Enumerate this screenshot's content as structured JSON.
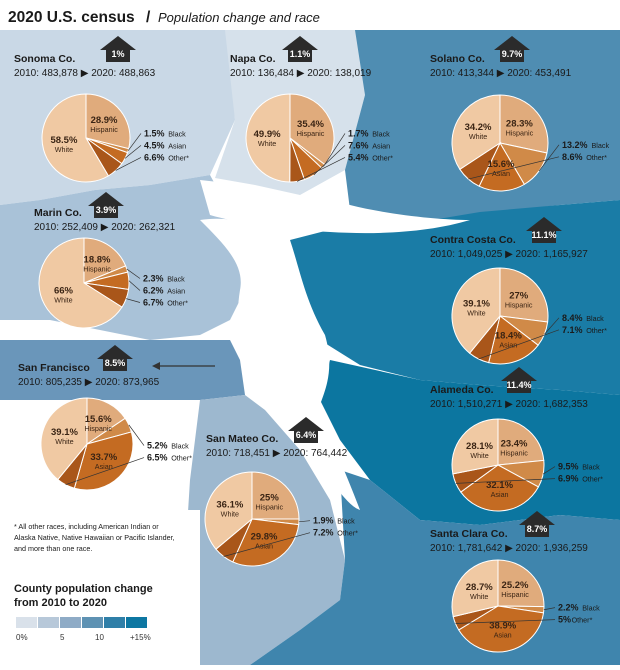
{
  "header": {
    "title": "2020 U.S. census",
    "slash": "/",
    "subtitle": "Population change and race"
  },
  "footnote": [
    "* All other races, including American Indian or",
    "Alaska Native, Native Hawaiian or Pacific Islander,",
    "and more than one race."
  ],
  "legend": {
    "title_line1": "County population change",
    "title_line2": "from 2010 to 2020",
    "ticks": [
      "0%",
      "5",
      "10",
      "+15%"
    ],
    "colors": [
      "#d9e1ea",
      "#b7c8d9",
      "#8eabc6",
      "#5e92b3",
      "#2f7fa8",
      "#0d77a2"
    ]
  },
  "palette": {
    "White": "#f0c9a3",
    "Hispanic": "#e0ab7c",
    "Black": "#d08a48",
    "Asian": "#c46b22",
    "Other": "#a9561a"
  },
  "chart_data": [
    {
      "type": "pie",
      "county": "Sonoma Co.",
      "change": "1%",
      "pop2010": "483,878",
      "pop2020": "488,863",
      "slices": [
        {
          "label": "Hispanic",
          "value": 28.9,
          "text": "28.9%"
        },
        {
          "label": "Black",
          "value": 1.5,
          "text": "1.5%"
        },
        {
          "label": "Asian",
          "value": 4.5,
          "text": "4.5%"
        },
        {
          "label": "Other*",
          "value": 6.6,
          "text": "6.6%"
        },
        {
          "label": "White",
          "value": 58.5,
          "text": "58.5%"
        }
      ]
    },
    {
      "type": "pie",
      "county": "Napa Co.",
      "change": "1.1%",
      "pop2010": "136,484",
      "pop2020": "138,019",
      "slices": [
        {
          "label": "Hispanic",
          "value": 35.4,
          "text": "35.4%"
        },
        {
          "label": "Black",
          "value": 1.7,
          "text": "1.7%"
        },
        {
          "label": "Asian",
          "value": 7.6,
          "text": "7.6%"
        },
        {
          "label": "Other*",
          "value": 5.4,
          "text": "5.4%"
        },
        {
          "label": "White",
          "value": 49.9,
          "text": "49.9%"
        }
      ]
    },
    {
      "type": "pie",
      "county": "Solano Co.",
      "change": "9.7%",
      "pop2010": "413,344",
      "pop2020": "453,491",
      "slices": [
        {
          "label": "Hispanic",
          "value": 28.3,
          "text": "28.3%"
        },
        {
          "label": "Black",
          "value": 13.2,
          "text": "13.2%"
        },
        {
          "label": "Asian",
          "value": 15.6,
          "text": "15.6%"
        },
        {
          "label": "Other*",
          "value": 8.6,
          "text": "8.6%"
        },
        {
          "label": "White",
          "value": 34.2,
          "text": "34.2%"
        }
      ]
    },
    {
      "type": "pie",
      "county": "Marin Co.",
      "change": "3.9%",
      "pop2010": "252,409",
      "pop2020": "262,321",
      "slices": [
        {
          "label": "Hispanic",
          "value": 18.8,
          "text": "18.8%"
        },
        {
          "label": "Black",
          "value": 2.3,
          "text": "2.3%"
        },
        {
          "label": "Asian",
          "value": 6.2,
          "text": "6.2%"
        },
        {
          "label": "Other*",
          "value": 6.7,
          "text": "6.7%"
        },
        {
          "label": "White",
          "value": 66,
          "text": "66%"
        }
      ]
    },
    {
      "type": "pie",
      "county": "Contra Costa Co.",
      "change": "11.1%",
      "pop2010": "1,049,025",
      "pop2020": "1,165,927",
      "slices": [
        {
          "label": "Hispanic",
          "value": 27,
          "text": "27%"
        },
        {
          "label": "Black",
          "value": 8.4,
          "text": "8.4%"
        },
        {
          "label": "Asian",
          "value": 18.4,
          "text": "18.4%"
        },
        {
          "label": "Other*",
          "value": 7.1,
          "text": "7.1%"
        },
        {
          "label": "White",
          "value": 39.1,
          "text": "39.1%"
        }
      ]
    },
    {
      "type": "pie",
      "county": "San Francisco",
      "change": "8.5%",
      "pop2010": "805,235",
      "pop2020": "873,965",
      "slices": [
        {
          "label": "Hispanic",
          "value": 15.6,
          "text": "15.6%"
        },
        {
          "label": "Black",
          "value": 5.2,
          "text": "5.2%"
        },
        {
          "label": "Asian",
          "value": 33.7,
          "text": "33.7%"
        },
        {
          "label": "Other*",
          "value": 6.5,
          "text": "6.5%"
        },
        {
          "label": "White",
          "value": 39.1,
          "text": "39.1%"
        }
      ]
    },
    {
      "type": "pie",
      "county": "Alameda Co.",
      "change": "11.4%",
      "pop2010": "1,510,271",
      "pop2020": "1,682,353",
      "slices": [
        {
          "label": "Hispanic",
          "value": 23.4,
          "text": "23.4%"
        },
        {
          "label": "Black",
          "value": 9.5,
          "text": "9.5%"
        },
        {
          "label": "Asian",
          "value": 32.1,
          "text": "32.1%"
        },
        {
          "label": "Other*",
          "value": 6.9,
          "text": "6.9%"
        },
        {
          "label": "White",
          "value": 28.1,
          "text": "28.1%"
        }
      ]
    },
    {
      "type": "pie",
      "county": "San Mateo Co.",
      "change": "6.4%",
      "pop2010": "718,451",
      "pop2020": "764,442",
      "slices": [
        {
          "label": "Hispanic",
          "value": 25,
          "text": "25%"
        },
        {
          "label": "Black",
          "value": 1.9,
          "text": "1.9%"
        },
        {
          "label": "Asian",
          "value": 29.8,
          "text": "29.8%"
        },
        {
          "label": "Other*",
          "value": 7.2,
          "text": "7.2%"
        },
        {
          "label": "White",
          "value": 36.1,
          "text": "36.1%"
        }
      ]
    },
    {
      "type": "pie",
      "county": "Santa Clara Co.",
      "change": "8.7%",
      "pop2010": "1,781,642",
      "pop2020": "1,936,259",
      "slices": [
        {
          "label": "Hispanic",
          "value": 25.2,
          "text": "25.2%"
        },
        {
          "label": "Black",
          "value": 2.2,
          "text": "2.2%"
        },
        {
          "label": "Asian",
          "value": 38.9,
          "text": "38.9%"
        },
        {
          "label": "Other*",
          "value": 5,
          "text": "5%"
        },
        {
          "label": "White",
          "value": 28.7,
          "text": "28.7%"
        }
      ]
    }
  ]
}
